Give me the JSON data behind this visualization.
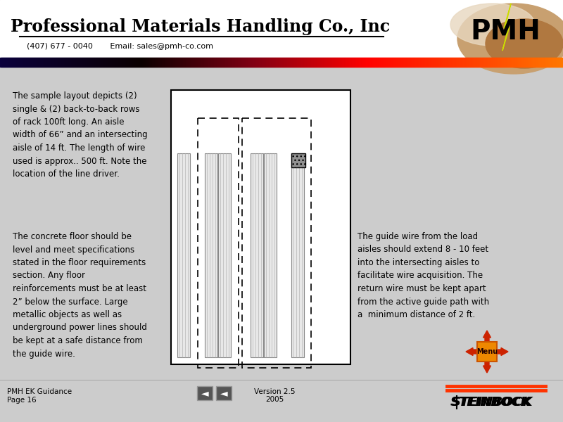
{
  "title": "Professional Materials Handling Co., Inc",
  "contact": "(407) 677 - 0040       Email: sales@pmh-co.com",
  "bg_color": "#cccccc",
  "text_left_top": "The sample layout depicts (2)\nsingle & (2) back-to-back rows\nof rack 100ft long. An aisle\nwidth of 66” and an intersecting\naisle of 14 ft. The length of wire\nused is approx.. 500 ft. Note the\nlocation of the line driver.",
  "text_left_bottom": "The concrete floor should be\nlevel and meet specifications\nstated in the floor requirements\nsection. Any floor\nreinforcements must be at least\n2” below the surface. Large\nmetallic objects as well as\nunderground power lines should\nbe kept at a safe distance from\nthe guide wire.",
  "text_right": "The guide wire from the load\naisles should extend 8 - 10 feet\ninto the intersecting aisles to\nfacilitate wire acquisition. The\nreturn wire must be kept apart\nfrom the active guide path with\na  minimum distance of 2 ft.",
  "footer_left": "PMH EK Guidance\nPage 16",
  "footer_center_line1": "Version 2.5",
  "footer_center_line2": "2005"
}
